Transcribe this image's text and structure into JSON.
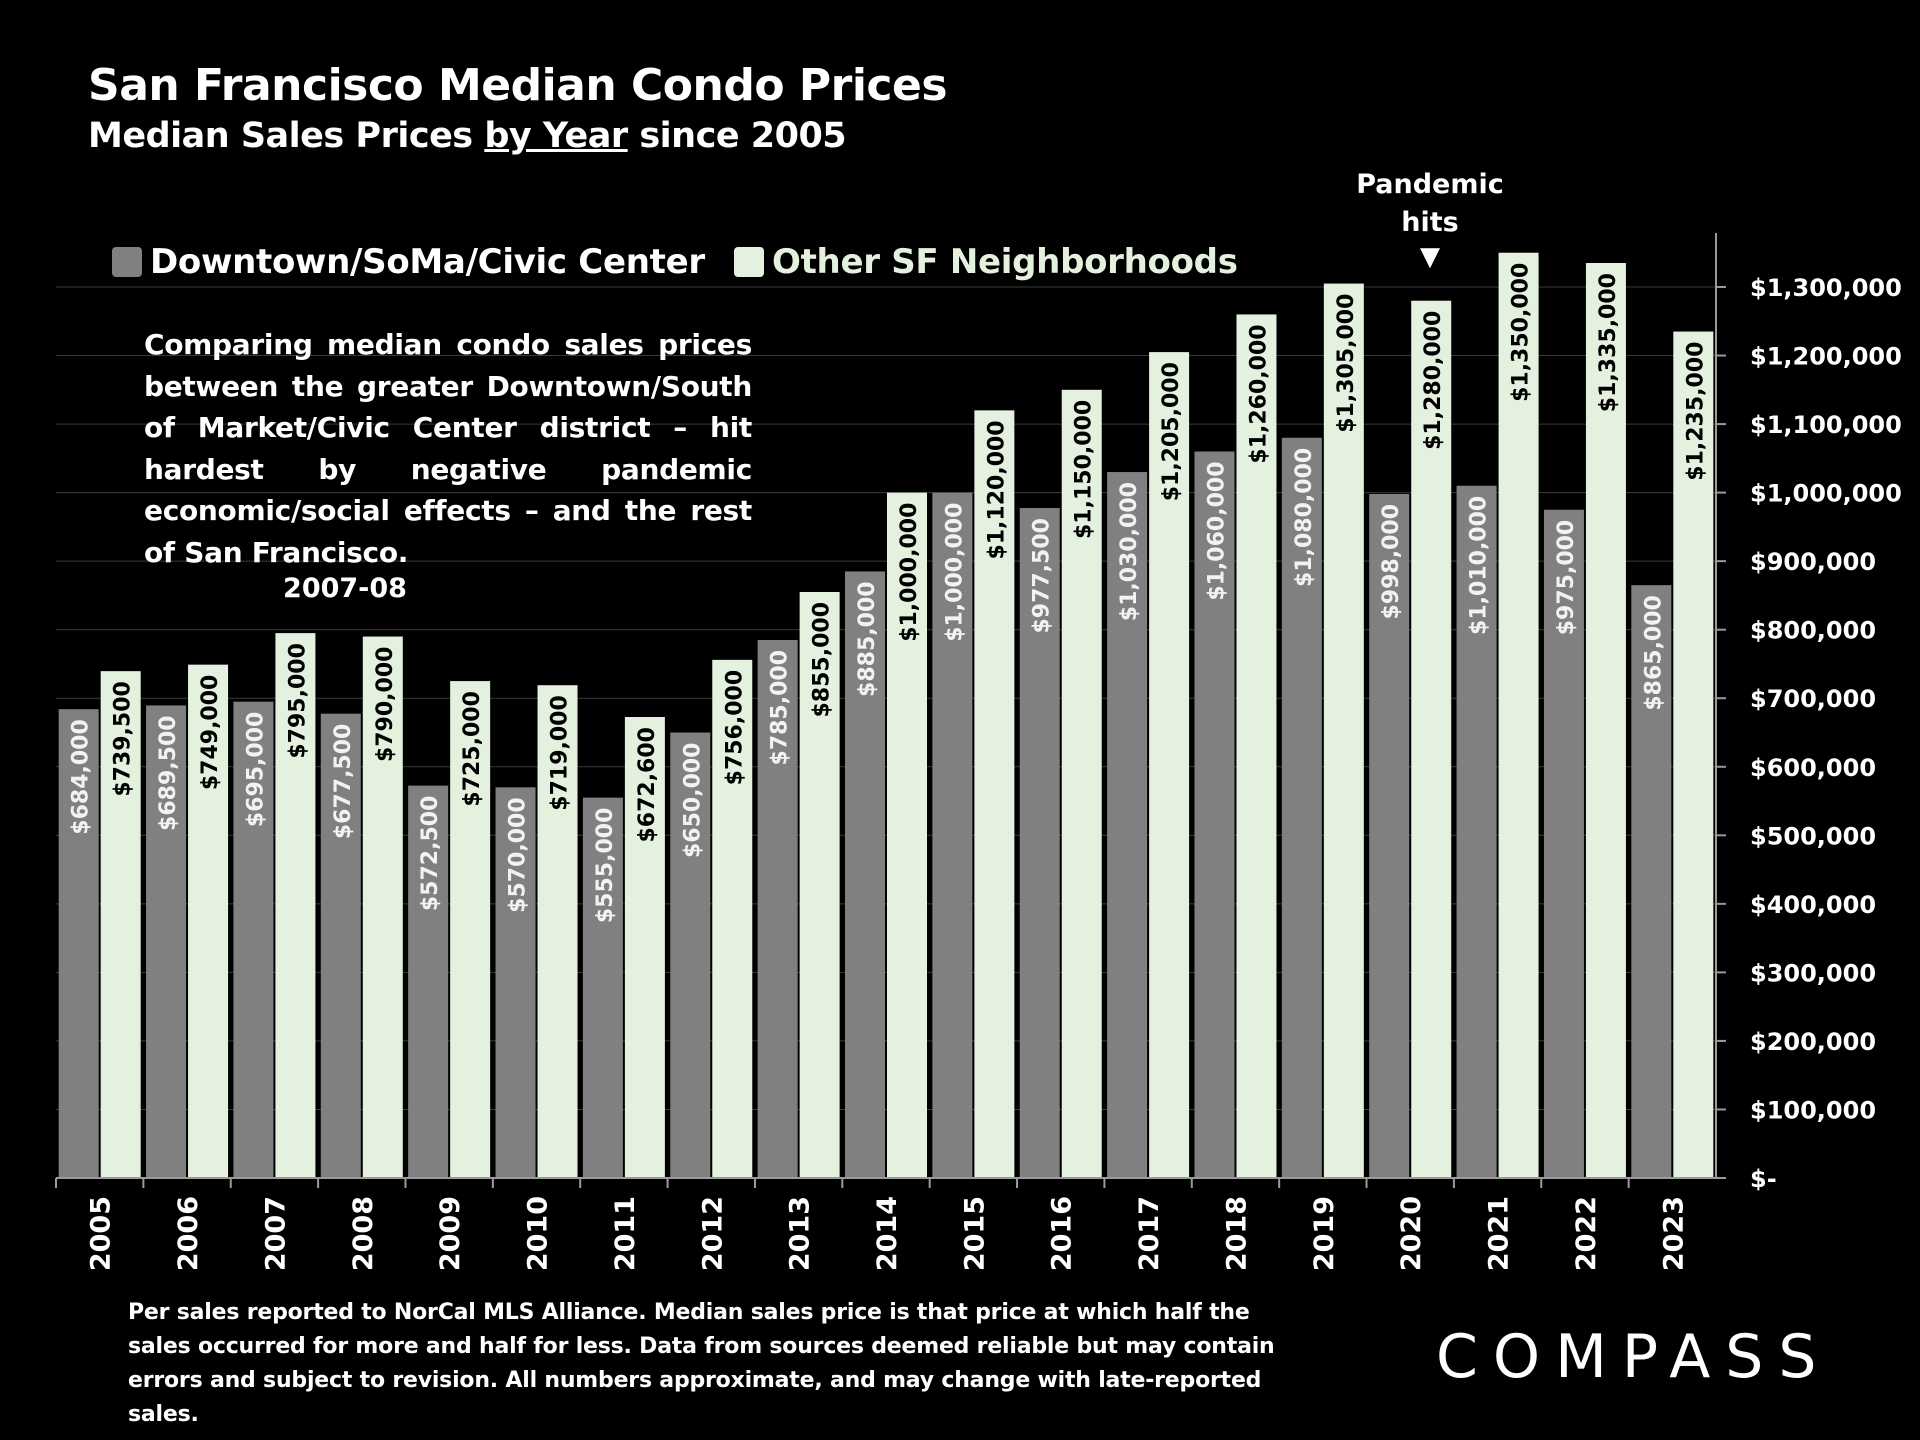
{
  "title": "San Francisco Median Condo Prices",
  "subtitle": {
    "before": "Median Sales Prices ",
    "underlined": "by Year",
    "after": " since 2005"
  },
  "comment": "Comparing median condo sales prices between the greater Downtown/South of Market/Civic Center district – hit hardest by negative pandemic economic/social effects – and the rest of San Francisco.",
  "annotations": {
    "crisis": "2007-08",
    "pandemic_line1": "Pandemic",
    "pandemic_line2": "hits",
    "pandemic_arrow": "▼"
  },
  "footnote": "Per sales reported to NorCal MLS Alliance. Median sales price is that price at which half the sales occurred for more and half for less. Data from sources deemed reliable but may contain errors and subject to revision. All numbers approximate, and may change with late-reported sales.",
  "brand": "COMPASS",
  "colors": {
    "downtown": "#808080",
    "other": "#e3f1de",
    "background": "#000000",
    "grid": "#3a3a3a",
    "axis": "#9a9a9a"
  },
  "chart_data": {
    "type": "bar",
    "categories": [
      "2005",
      "2006",
      "2007",
      "2008",
      "2009",
      "2010",
      "2011",
      "2012",
      "2013",
      "2014",
      "2015",
      "2016",
      "2017",
      "2018",
      "2019",
      "2020",
      "2021",
      "2022",
      "2023"
    ],
    "series": [
      {
        "name": "Downtown/SoMa/Civic Center",
        "values": [
          684000,
          689500,
          695000,
          677500,
          572500,
          570000,
          555000,
          650000,
          785000,
          885000,
          1000000,
          977500,
          1030000,
          1060000,
          1080000,
          998000,
          1010000,
          975000,
          865000
        ],
        "labels": [
          "$684,000",
          "$689,500",
          "$695,000",
          "$677,500",
          "$572,500",
          "$570,000",
          "$555,000",
          "$650,000",
          "$785,000",
          "$885,000",
          "$1,000,000",
          "$977,500",
          "$1,030,000",
          "$1,060,000",
          "$1,080,000",
          "$998,000",
          "$1,010,000",
          "$975,000",
          "$865,000"
        ]
      },
      {
        "name": "Other SF Neighborhoods",
        "values": [
          739500,
          749000,
          795000,
          790000,
          725000,
          719000,
          672600,
          756000,
          855000,
          1000000,
          1120000,
          1150000,
          1205000,
          1260000,
          1305000,
          1280000,
          1350000,
          1335000,
          1235000
        ],
        "labels": [
          "$739,500",
          "$749,000",
          "$795,000",
          "$790,000",
          "$725,000",
          "$719,000",
          "$672,600",
          "$756,000",
          "$855,000",
          "$1,000,000",
          "$1,120,000",
          "$1,150,000",
          "$1,205,000",
          "$1,260,000",
          "$1,305,000",
          "$1,280,000",
          "$1,350,000",
          "$1,335,000",
          "$1,235,000"
        ]
      }
    ],
    "yticks": [
      0,
      100000,
      200000,
      300000,
      400000,
      500000,
      600000,
      700000,
      800000,
      900000,
      1000000,
      1100000,
      1200000,
      1300000
    ],
    "ytick_labels": [
      "$-",
      "$100,000",
      "$200,000",
      "$300,000",
      "$400,000",
      "$500,000",
      "$600,000",
      "$700,000",
      "$800,000",
      "$900,000",
      "$1,000,000",
      "$1,100,000",
      "$1,200,000",
      "$1,300,000"
    ],
    "ylim": [
      0,
      1300000
    ],
    "y_axis_position": "right",
    "legend_position": "top-left",
    "grid": true,
    "xlabel": "",
    "ylabel": ""
  }
}
